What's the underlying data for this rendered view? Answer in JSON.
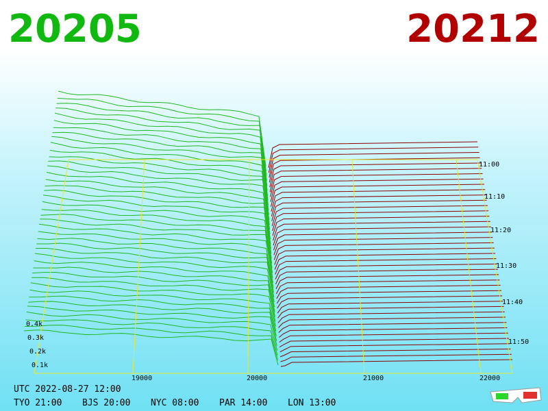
{
  "header": {
    "bid": "20205",
    "ask": "20212"
  },
  "price_axis": {
    "ticks": [
      "19000",
      "20000",
      "21000",
      "22000"
    ]
  },
  "time_axis": {
    "ticks": [
      "11:00",
      "11:10",
      "11:20",
      "11:30",
      "11:40",
      "11:50"
    ]
  },
  "depth_axis": {
    "ticks": [
      "0.4k",
      "0.3k",
      "0.2k",
      "0.1k"
    ]
  },
  "footer": {
    "utc": "UTC 2022-08-27 12:00",
    "clocks": [
      "TYO 21:00",
      "BJS 20:00",
      "NYC 08:00",
      "PAR 14:00",
      "LON 13:00"
    ]
  }
}
